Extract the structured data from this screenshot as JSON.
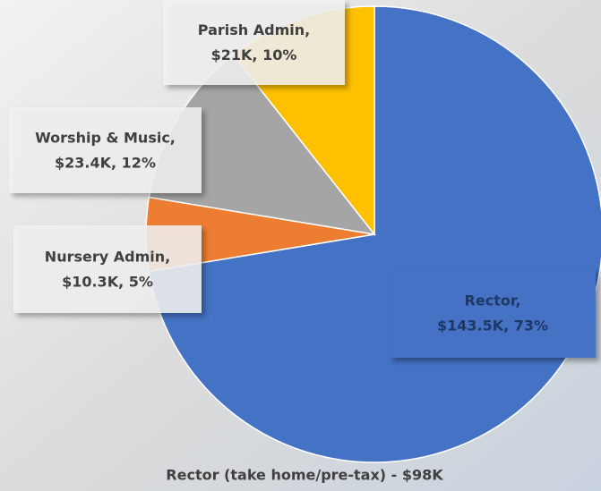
{
  "chart_data": {
    "type": "pie",
    "categories": [
      "Rector,",
      "Nursery Admin,",
      "Worship & Music,",
      "Parish Admin,"
    ],
    "values": [
      143500,
      10300,
      23400,
      21000
    ],
    "value_labels": [
      "$143.5K, 73%",
      "$10.3K, 5%",
      "$23.4K, 12%",
      "$21K, 10%"
    ],
    "colors": [
      "#4472c4",
      "#ed7d31",
      "#a5a5a5",
      "#ffc000"
    ],
    "caption": "Rector (take home/pre-tax) - $98K"
  }
}
